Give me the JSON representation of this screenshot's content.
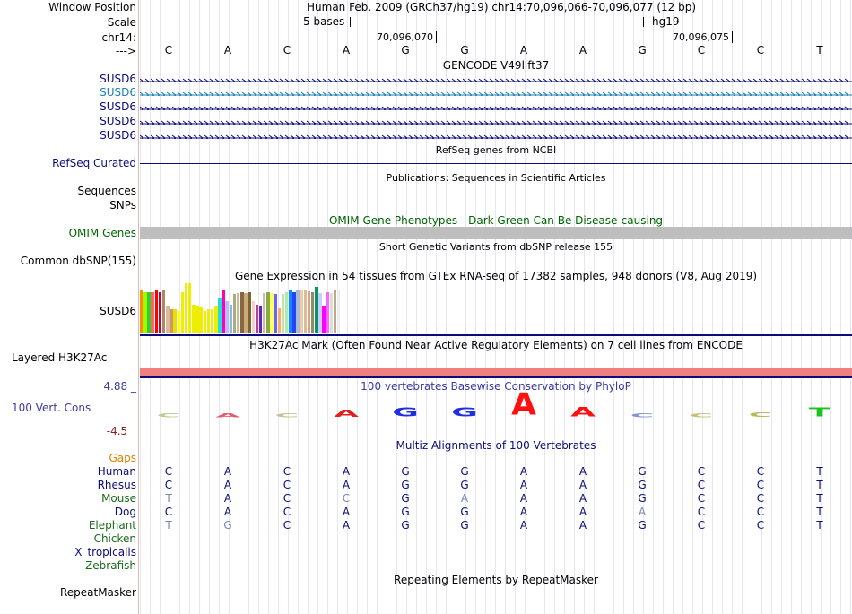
{
  "labels": {
    "window_position": "Window Position",
    "scale": "Scale",
    "chrom": "chr14:",
    "strand": "--->",
    "susd6_1": "SUSD6",
    "susd6_2": "SUSD6",
    "susd6_3": "SUSD6",
    "susd6_4": "SUSD6",
    "susd6_5": "SUSD6",
    "refseq": "RefSeq Curated",
    "sequences": "Sequences",
    "snps": "SNPs",
    "omim": "OMIM Genes",
    "dbsnp": "Common dbSNP(155)",
    "gtex": "SUSD6",
    "h3k27": "Layered H3K27Ac",
    "phylop_max": "4.88 _",
    "phylop": "100 Vert. Cons",
    "phylop_min": "-4.5 _",
    "gaps": "Gaps",
    "human": "Human",
    "rhesus": "Rhesus",
    "mouse": "Mouse",
    "dog": "Dog",
    "elephant": "Elephant",
    "chicken": "Chicken",
    "xtrop": "X_tropicalis",
    "zebrafish": "Zebrafish",
    "repeatmasker": "RepeatMasker"
  },
  "ruler": {
    "window_text": "Human Feb. 2009 (GRCh37/hg19)   chr14:70,096,066-70,096,077 (12 bp)",
    "scale_text": "5 bases",
    "assembly": "hg19",
    "pos1": "70,096,070",
    "pos2": "70,096,075"
  },
  "sequence": [
    "C",
    "A",
    "C",
    "A",
    "G",
    "G",
    "A",
    "A",
    "G",
    "C",
    "C",
    "T"
  ],
  "titles": {
    "gencode": "GENCODE V49lift37",
    "refseq": "RefSeq genes from NCBI",
    "publications": "Publications: Sequences in Scientific Articles",
    "omim": "OMIM Gene Phenotypes - Dark Green Can Be Disease-causing",
    "dbsnp": "Short Genetic Variants from dbSNP release 155",
    "gtex": "Gene Expression in 54 tissues from GTEx RNA-seq of 17382 samples, 948 donors (V8, Aug 2019)",
    "h3k27": "H3K27Ac Mark (Often Found Near Active Regulatory Elements) on 7 cell lines from ENCODE",
    "phylop": "100 vertebrates Basewise Conservation by PhyloP",
    "multiz": "Multiz Alignments of 100 Vertebrates",
    "repeatmasker": "Repeating Elements by RepeatMasker"
  },
  "alignments": {
    "human": [
      "C",
      "A",
      "C",
      "A",
      "G",
      "G",
      "A",
      "A",
      "G",
      "C",
      "C",
      "T"
    ],
    "rhesus": [
      "C",
      "A",
      "C",
      "A",
      "G",
      "G",
      "A",
      "A",
      "G",
      "C",
      "C",
      "T"
    ],
    "mouse": [
      "T",
      "A",
      "C",
      "C",
      "G",
      "A",
      "A",
      "A",
      "G",
      "C",
      "C",
      "T"
    ],
    "dog": [
      "C",
      "A",
      "C",
      "A",
      "G",
      "G",
      "A",
      "A",
      "A",
      "C",
      "C",
      "T"
    ],
    "elephant": [
      "T",
      "G",
      "C",
      "A",
      "G",
      "G",
      "A",
      "A",
      "G",
      "C",
      "C",
      "T"
    ]
  },
  "phylop_logo": [
    {
      "b": "C",
      "h": 0.12,
      "c": "#b8d088"
    },
    {
      "b": "A",
      "h": 0.18,
      "c": "#e06070"
    },
    {
      "b": "C",
      "h": 0.12,
      "c": "#c8c090"
    },
    {
      "b": "A",
      "h": 0.32,
      "c": "#e02020"
    },
    {
      "b": "G",
      "h": 0.38,
      "c": "#2030e0"
    },
    {
      "b": "G",
      "h": 0.38,
      "c": "#2030e0"
    },
    {
      "b": "A",
      "h": 1.0,
      "c": "#ff1010"
    },
    {
      "b": "A",
      "h": 0.42,
      "c": "#ff1010"
    },
    {
      "b": "C",
      "h": 0.14,
      "c": "#8890d8"
    },
    {
      "b": "C",
      "h": 0.14,
      "c": "#c8c078"
    },
    {
      "b": "C",
      "h": 0.2,
      "c": "#b8b860"
    },
    {
      "b": "T",
      "h": 0.38,
      "c": "#20c020"
    }
  ],
  "gtex_values": [
    0.88,
    0.82,
    0.82,
    0.82,
    0.86,
    0.82,
    0.86,
    0.55,
    0.48,
    0.48,
    0.45,
    0.82,
    1.0,
    1.0,
    0.58,
    0.55,
    0.52,
    0.45,
    0.48,
    0.48,
    0.55,
    0.72,
    0.85,
    0.65,
    0.58,
    0.78,
    0.8,
    0.82,
    0.8,
    0.82,
    0.65,
    0.58,
    0.55,
    0.8,
    0.82,
    0.8,
    0.78,
    0.5,
    0.78,
    0.82,
    0.86,
    0.82,
    0.85,
    0.88,
    0.88,
    0.84,
    0.82,
    0.92,
    0.8,
    0.55,
    0.82,
    0.8,
    0.88,
    0.85
  ],
  "gtex_colors": [
    "#ff8c00",
    "#99ff00",
    "#33cc33",
    "#ff6666",
    "#ff0000",
    "#cc0033",
    "#aa8866",
    "#dbb89e",
    "#cc9966",
    "#e8e000",
    "#ffff00",
    "#eeee00",
    "#eeee00",
    "#eeee00",
    "#eeee00",
    "#eeee00",
    "#eeee00",
    "#eeee00",
    "#eeee00",
    "#eeee00",
    "#eeee00",
    "#22dddd",
    "#ff00bb",
    "#bbbbff",
    "#88bbdd",
    "#aaaa88",
    "#ccbb99",
    "#886644",
    "#ccaa77",
    "#776633",
    "#ffcccc",
    "#aa4499",
    "#6622bb",
    "#ccbbaa",
    "#88aa44",
    "#ffff66",
    "#6666ff",
    "#ffaa66",
    "#ccddaa",
    "#aaeeaa",
    "#1188ff",
    "#2244ff",
    "#aabbcc",
    "#eeccaa",
    "#ddbb99",
    "#ccaa88",
    "#998866",
    "#009966",
    "#ccccff",
    "#ff00ff",
    "#ff66ff",
    "#dddddd",
    "#bbaa88",
    "#eeeeee"
  ]
}
